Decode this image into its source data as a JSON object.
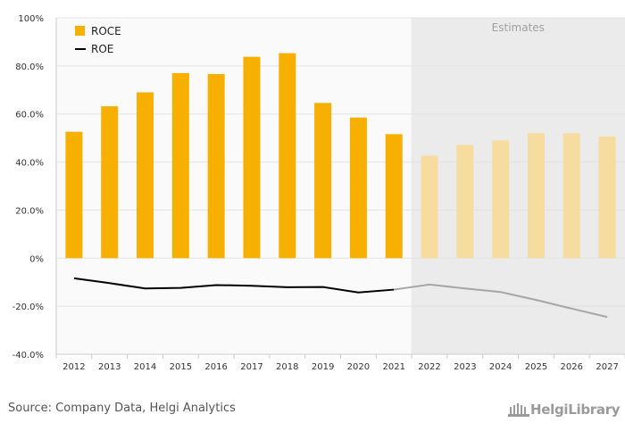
{
  "chart_data": {
    "type": "bar",
    "categories": [
      "2012",
      "2013",
      "2014",
      "2015",
      "2016",
      "2017",
      "2018",
      "2019",
      "2020",
      "2021",
      "2022",
      "2023",
      "2024",
      "2025",
      "2026",
      "2027"
    ],
    "series": [
      {
        "name": "ROCE",
        "type": "bar",
        "color": "#f7b000",
        "values": [
          52.6,
          63.2,
          69.0,
          77.0,
          76.6,
          83.8,
          85.3,
          64.6,
          58.5,
          51.6,
          42.6,
          47.1,
          49.0,
          52.0,
          52.0,
          50.6
        ]
      },
      {
        "name": "ROE",
        "type": "line",
        "color": "#000000",
        "values": [
          -8.4,
          -10.4,
          -12.6,
          -12.4,
          -11.2,
          -11.5,
          -12.1,
          -12.0,
          -14.3,
          -13.1,
          -11.0,
          -12.6,
          -14.1,
          -17.4,
          -21.0,
          -24.5
        ]
      }
    ],
    "estimate_start": "2022",
    "estimate_label": "Estimates",
    "estimate_bar_color": "#f7dca0",
    "estimate_line_color": "#a6a6a6",
    "ylim": [
      -40,
      100
    ],
    "yticks": [
      -40,
      -20,
      0,
      20,
      40,
      60,
      80,
      100
    ],
    "ytick_labels": [
      "-40.0%",
      "-20.0%",
      "0%",
      "20.0%",
      "40.0%",
      "60.0%",
      "80.0%",
      "100%"
    ],
    "legend_position": "top-left",
    "grid": true
  },
  "footer": {
    "source": "Source: Company Data, Helgi Analytics",
    "logo_text": "HelgiLibrary"
  }
}
